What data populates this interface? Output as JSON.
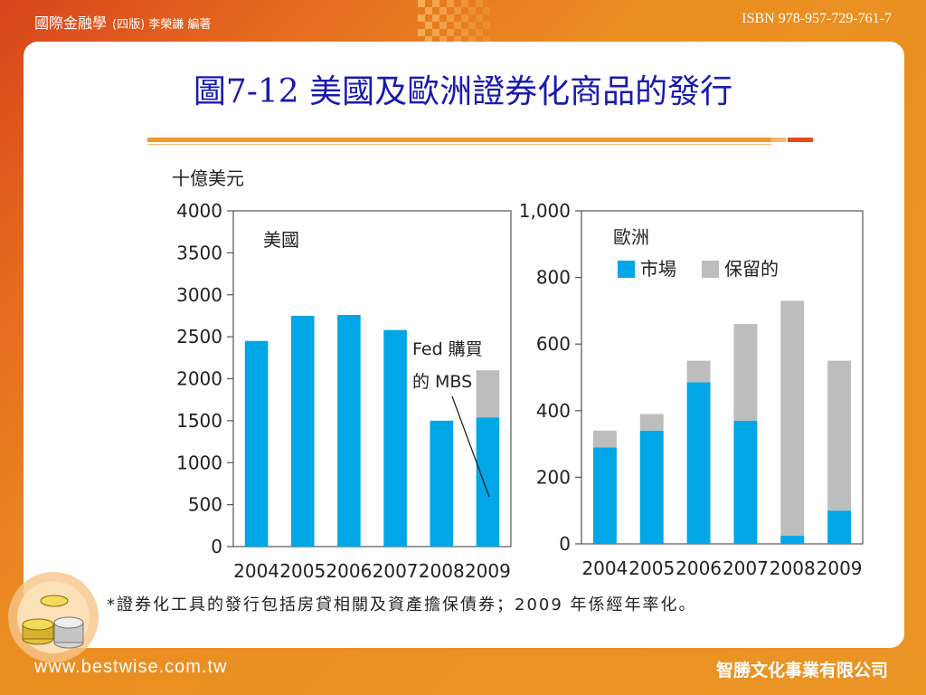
{
  "header": {
    "book_title": "國際金融學",
    "book_sub": "(四版) 李榮謙 編著",
    "isbn": "ISBN 978-957-729-761-7"
  },
  "slide_title": "圖7-12 美國及歐洲證券化商品的發行",
  "chart_data": [
    {
      "type": "bar",
      "ylabel": "十億美元",
      "panel_label": "美國",
      "categories": [
        "2004",
        "2005",
        "2006",
        "2007",
        "2008",
        "2009"
      ],
      "ylim": [
        0,
        4000
      ],
      "yticks": [
        0,
        500,
        1000,
        1500,
        2000,
        2500,
        3000,
        3500,
        4000
      ],
      "ytick_labels": [
        "0",
        "500",
        "1000",
        "1500",
        "2000",
        "2500",
        "3000",
        "3500",
        "4000"
      ],
      "series": [
        {
          "values": [
            2450,
            2750,
            2760,
            2580,
            1500,
            1540
          ],
          "color": "#00a6e6"
        },
        {
          "values": [
            0,
            0,
            0,
            0,
            0,
            560
          ],
          "color": "#bdbdbd"
        }
      ],
      "annotation": {
        "line1": "Fed 購買",
        "line2": "的 MBS",
        "category": "2009",
        "series": 1
      }
    },
    {
      "type": "bar",
      "stacked": true,
      "panel_label": "歐洲",
      "categories": [
        "2004",
        "2005",
        "2006",
        "2007",
        "2008",
        "2009"
      ],
      "ylim": [
        0,
        1000
      ],
      "yticks": [
        0,
        200,
        400,
        600,
        800,
        1000
      ],
      "ytick_labels": [
        "0",
        "200",
        "400",
        "600",
        "800",
        "1,000"
      ],
      "legend_position": "top-left",
      "series": [
        {
          "name": "市場",
          "values": [
            290,
            340,
            485,
            370,
            25,
            100
          ],
          "color": "#00a6e6"
        },
        {
          "name": "保留的",
          "values": [
            50,
            50,
            65,
            290,
            705,
            450
          ],
          "color": "#bdbdbd"
        }
      ]
    }
  ],
  "footnote": "*證券化工具的發行包括房貸相關及資產擔保債券；2009 年係經年率化。",
  "footer": {
    "website": "www.bestwise.com.tw",
    "publisher": "智勝文化事業有限公司"
  }
}
